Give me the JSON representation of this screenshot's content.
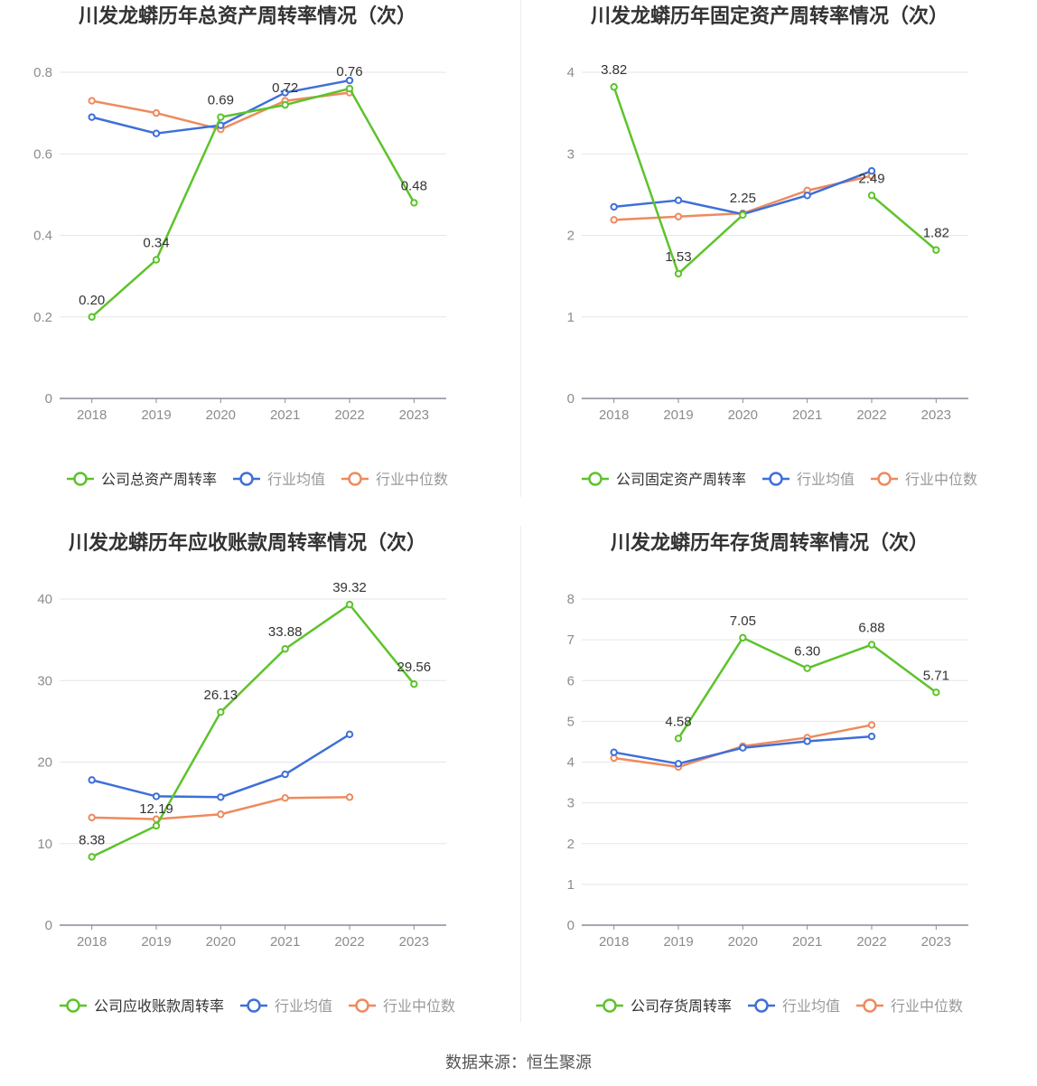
{
  "source_label": "数据来源：恒生聚源",
  "colors": {
    "company": "#5dc32c",
    "avg": "#3e6fd8",
    "median": "#ee8a5e"
  },
  "chart_data": [
    {
      "type": "line",
      "title": "川发龙蟒历年总资产周转率情况（次）",
      "categories": [
        "2018",
        "2019",
        "2020",
        "2021",
        "2022",
        "2023"
      ],
      "ylim": [
        0,
        0.8
      ],
      "yticks": [
        0,
        0.2,
        0.4,
        0.6,
        0.8
      ],
      "ytick_labels": [
        "0",
        "0.2",
        "0.4",
        "0.6",
        "0.8"
      ],
      "series": [
        {
          "name": "公司总资产周转率",
          "key": "company",
          "values": [
            0.2,
            0.34,
            0.69,
            0.72,
            0.76,
            0.48
          ],
          "labels": [
            "0.20",
            "0.34",
            "0.69",
            "0.72",
            "0.76",
            "0.48"
          ]
        },
        {
          "name": "行业均值",
          "key": "avg",
          "values": [
            0.69,
            0.65,
            0.67,
            0.75,
            0.78,
            null
          ]
        },
        {
          "name": "行业中位数",
          "key": "median",
          "values": [
            0.73,
            0.7,
            0.66,
            0.73,
            0.75,
            null
          ]
        }
      ]
    },
    {
      "type": "line",
      "title": "川发龙蟒历年固定资产周转率情况（次）",
      "categories": [
        "2018",
        "2019",
        "2020",
        "2021",
        "2022",
        "2023"
      ],
      "ylim": [
        0,
        4
      ],
      "yticks": [
        0,
        1,
        2,
        3,
        4
      ],
      "ytick_labels": [
        "0",
        "1",
        "2",
        "3",
        "4"
      ],
      "series": [
        {
          "name": "公司固定资产周转率",
          "key": "company",
          "values": [
            3.82,
            1.53,
            2.25,
            null,
            2.49,
            1.82
          ],
          "labels": [
            "3.82",
            "1.53",
            "2.25",
            null,
            "2.49",
            "1.82"
          ]
        },
        {
          "name": "行业均值",
          "key": "avg",
          "values": [
            2.35,
            2.43,
            2.26,
            2.49,
            2.79,
            null
          ]
        },
        {
          "name": "行业中位数",
          "key": "median",
          "values": [
            2.19,
            2.23,
            2.27,
            2.55,
            2.73,
            null
          ]
        }
      ]
    },
    {
      "type": "line",
      "title": "川发龙蟒历年应收账款周转率情况（次）",
      "categories": [
        "2018",
        "2019",
        "2020",
        "2021",
        "2022",
        "2023"
      ],
      "ylim": [
        0,
        40
      ],
      "yticks": [
        0,
        10,
        20,
        30,
        40
      ],
      "ytick_labels": [
        "0",
        "10",
        "20",
        "30",
        "40"
      ],
      "series": [
        {
          "name": "公司应收账款周转率",
          "key": "company",
          "values": [
            8.38,
            12.19,
            26.13,
            33.88,
            39.32,
            29.56
          ],
          "labels": [
            "8.38",
            "12.19",
            "26.13",
            "33.88",
            "39.32",
            "29.56"
          ]
        },
        {
          "name": "行业均值",
          "key": "avg",
          "values": [
            17.8,
            15.8,
            15.7,
            18.5,
            23.4,
            null
          ]
        },
        {
          "name": "行业中位数",
          "key": "median",
          "values": [
            13.2,
            13.0,
            13.6,
            15.6,
            15.7,
            null
          ]
        }
      ]
    },
    {
      "type": "line",
      "title": "川发龙蟒历年存货周转率情况（次）",
      "categories": [
        "2018",
        "2019",
        "2020",
        "2021",
        "2022",
        "2023"
      ],
      "ylim": [
        0,
        8
      ],
      "yticks": [
        0,
        1,
        2,
        3,
        4,
        5,
        6,
        7,
        8
      ],
      "ytick_labels": [
        "0",
        "1",
        "2",
        "3",
        "4",
        "5",
        "6",
        "7",
        "8"
      ],
      "series": [
        {
          "name": "公司存货周转率",
          "key": "company",
          "values": [
            null,
            4.58,
            7.05,
            6.3,
            6.88,
            5.71
          ],
          "labels": [
            null,
            "4.58",
            "7.05",
            "6.30",
            "6.88",
            "5.71"
          ]
        },
        {
          "name": "行业均值",
          "key": "avg",
          "values": [
            4.24,
            3.96,
            4.35,
            4.51,
            4.63,
            null
          ]
        },
        {
          "name": "行业中位数",
          "key": "median",
          "values": [
            4.1,
            3.88,
            4.39,
            4.6,
            4.91,
            null
          ]
        }
      ]
    }
  ]
}
